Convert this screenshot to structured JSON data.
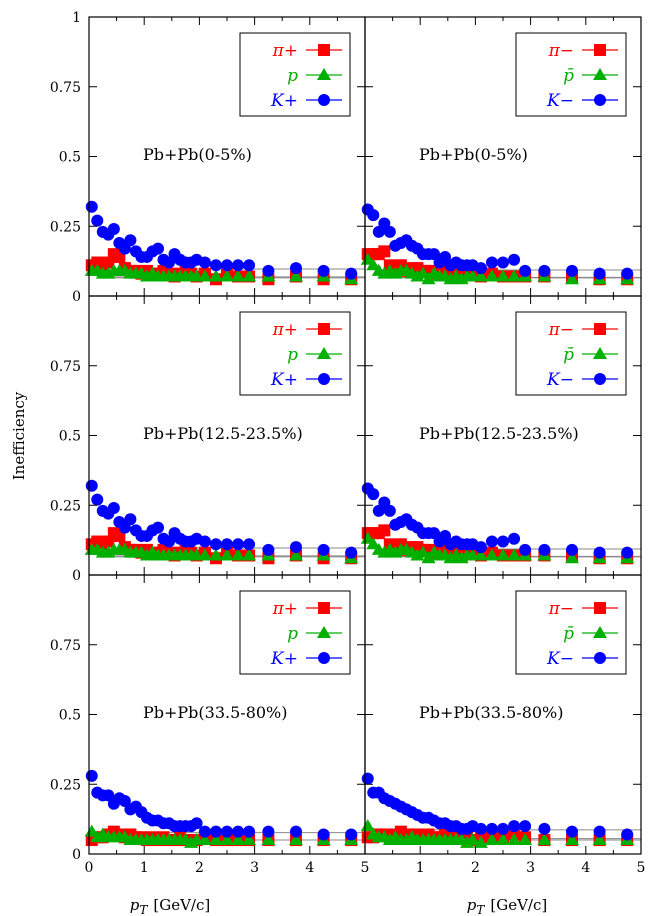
{
  "figure": {
    "ylabel": "Inefficiency",
    "xlabel_main": "p",
    "xlabel_sub": "T",
    "xlabel_unit": "[GeV/c]",
    "ytick_labels": [
      "0",
      "0.25",
      "0.5",
      "0.75",
      "1"
    ],
    "xtick_labels": [
      "0",
      "1",
      "2",
      "3",
      "4",
      "5"
    ],
    "colors": {
      "pion": "#ff0000",
      "proton": "#00b000",
      "kaon": "#0000ff",
      "fitline": "#888888"
    }
  },
  "chart_data": [
    {
      "type": "scatter",
      "panel": "row1-left",
      "annotation": "Pb+Pb(0-5%)",
      "xlim": [
        0,
        5
      ],
      "ylim": [
        0,
        1
      ],
      "legend": [
        "π+",
        "p",
        "K+"
      ],
      "x": [
        0.05,
        0.15,
        0.25,
        0.35,
        0.45,
        0.55,
        0.65,
        0.75,
        0.85,
        0.95,
        1.05,
        1.15,
        1.25,
        1.35,
        1.45,
        1.55,
        1.65,
        1.75,
        1.85,
        1.95,
        2.1,
        2.3,
        2.5,
        2.7,
        2.9,
        3.25,
        3.75,
        4.25,
        4.75
      ],
      "series": [
        {
          "name": "π+",
          "marker": "square",
          "values": [
            0.11,
            0.12,
            0.11,
            0.12,
            0.15,
            0.14,
            0.1,
            0.09,
            0.09,
            0.08,
            0.09,
            0.08,
            0.08,
            0.09,
            0.08,
            0.07,
            0.08,
            0.09,
            0.08,
            0.07,
            0.08,
            0.06,
            0.08,
            0.07,
            0.07,
            0.06,
            0.07,
            0.06,
            0.06
          ]
        },
        {
          "name": "p",
          "marker": "triangle",
          "values": [
            0.09,
            0.09,
            0.08,
            0.08,
            0.09,
            0.09,
            0.09,
            0.08,
            0.08,
            0.08,
            0.07,
            0.08,
            0.07,
            0.07,
            0.07,
            0.07,
            0.07,
            0.07,
            0.07,
            0.07,
            0.07,
            0.07,
            0.07,
            0.07,
            0.07,
            0.07,
            0.07,
            0.07,
            0.06
          ]
        },
        {
          "name": "K+",
          "marker": "circle",
          "values": [
            0.32,
            0.27,
            0.23,
            0.22,
            0.24,
            0.19,
            0.17,
            0.2,
            0.16,
            0.14,
            0.14,
            0.16,
            0.17,
            0.13,
            0.12,
            0.15,
            0.13,
            0.12,
            0.12,
            0.13,
            0.12,
            0.11,
            0.11,
            0.11,
            0.11,
            0.09,
            0.1,
            0.09,
            0.08
          ]
        }
      ]
    },
    {
      "type": "scatter",
      "panel": "row1-right",
      "annotation": "Pb+Pb(0-5%)",
      "xlim": [
        0,
        5
      ],
      "ylim": [
        0,
        1
      ],
      "legend": [
        "π−",
        "p̄",
        "K−"
      ],
      "x": [
        0.05,
        0.15,
        0.25,
        0.35,
        0.45,
        0.55,
        0.65,
        0.75,
        0.85,
        0.95,
        1.05,
        1.15,
        1.25,
        1.35,
        1.45,
        1.55,
        1.65,
        1.75,
        1.85,
        1.95,
        2.1,
        2.3,
        2.5,
        2.7,
        2.9,
        3.25,
        3.75,
        4.25,
        4.75
      ],
      "series": [
        {
          "name": "π−",
          "marker": "square",
          "values": [
            0.15,
            0.15,
            0.15,
            0.16,
            0.11,
            0.1,
            0.11,
            0.09,
            0.1,
            0.1,
            0.09,
            0.09,
            0.08,
            0.09,
            0.08,
            0.08,
            0.08,
            0.07,
            0.08,
            0.08,
            0.07,
            0.08,
            0.07,
            0.07,
            0.07,
            0.07,
            0.07,
            0.06,
            0.06
          ]
        },
        {
          "name": "p̄",
          "marker": "triangle",
          "values": [
            0.13,
            0.11,
            0.09,
            0.08,
            0.09,
            0.08,
            0.09,
            0.09,
            0.08,
            0.07,
            0.08,
            0.06,
            0.08,
            0.07,
            0.07,
            0.06,
            0.07,
            0.06,
            0.07,
            0.07,
            0.07,
            0.07,
            0.07,
            0.07,
            0.07,
            0.07,
            0.06,
            0.06,
            0.06
          ]
        },
        {
          "name": "K−",
          "marker": "circle",
          "values": [
            0.31,
            0.29,
            0.23,
            0.26,
            0.23,
            0.18,
            0.19,
            0.2,
            0.18,
            0.17,
            0.15,
            0.15,
            0.15,
            0.12,
            0.14,
            0.11,
            0.12,
            0.11,
            0.11,
            0.11,
            0.1,
            0.12,
            0.12,
            0.13,
            0.09,
            0.09,
            0.09,
            0.08,
            0.08
          ]
        }
      ]
    },
    {
      "type": "scatter",
      "panel": "row2-left",
      "annotation": "Pb+Pb(12.5-23.5%)",
      "xlim": [
        0,
        5
      ],
      "ylim": [
        0,
        1
      ],
      "legend": [
        "π+",
        "p",
        "K+"
      ],
      "x": [
        0.05,
        0.15,
        0.25,
        0.35,
        0.45,
        0.55,
        0.65,
        0.75,
        0.85,
        0.95,
        1.05,
        1.15,
        1.25,
        1.35,
        1.45,
        1.55,
        1.65,
        1.75,
        1.85,
        1.95,
        2.1,
        2.3,
        2.5,
        2.7,
        2.9,
        3.25,
        3.75,
        4.25,
        4.75
      ],
      "series": [
        {
          "name": "π+",
          "marker": "square",
          "values": [
            0.11,
            0.12,
            0.11,
            0.12,
            0.15,
            0.14,
            0.1,
            0.09,
            0.09,
            0.08,
            0.09,
            0.08,
            0.08,
            0.09,
            0.08,
            0.07,
            0.08,
            0.09,
            0.08,
            0.07,
            0.08,
            0.06,
            0.08,
            0.07,
            0.07,
            0.06,
            0.07,
            0.06,
            0.06
          ]
        },
        {
          "name": "p",
          "marker": "triangle",
          "values": [
            0.09,
            0.09,
            0.08,
            0.08,
            0.09,
            0.09,
            0.09,
            0.08,
            0.08,
            0.08,
            0.07,
            0.08,
            0.07,
            0.07,
            0.07,
            0.07,
            0.07,
            0.07,
            0.07,
            0.07,
            0.07,
            0.07,
            0.07,
            0.07,
            0.07,
            0.07,
            0.07,
            0.07,
            0.06
          ]
        },
        {
          "name": "K+",
          "marker": "circle",
          "values": [
            0.32,
            0.27,
            0.23,
            0.22,
            0.24,
            0.19,
            0.17,
            0.2,
            0.16,
            0.14,
            0.14,
            0.16,
            0.17,
            0.13,
            0.12,
            0.15,
            0.13,
            0.12,
            0.12,
            0.13,
            0.12,
            0.11,
            0.11,
            0.11,
            0.11,
            0.09,
            0.1,
            0.09,
            0.08
          ]
        }
      ]
    },
    {
      "type": "scatter",
      "panel": "row2-right",
      "annotation": "Pb+Pb(12.5-23.5%)",
      "xlim": [
        0,
        5
      ],
      "ylim": [
        0,
        1
      ],
      "legend": [
        "π−",
        "p̄",
        "K−"
      ],
      "x": [
        0.05,
        0.15,
        0.25,
        0.35,
        0.45,
        0.55,
        0.65,
        0.75,
        0.85,
        0.95,
        1.05,
        1.15,
        1.25,
        1.35,
        1.45,
        1.55,
        1.65,
        1.75,
        1.85,
        1.95,
        2.1,
        2.3,
        2.5,
        2.7,
        2.9,
        3.25,
        3.75,
        4.25,
        4.75
      ],
      "series": [
        {
          "name": "π−",
          "marker": "square",
          "values": [
            0.15,
            0.15,
            0.15,
            0.16,
            0.11,
            0.1,
            0.11,
            0.09,
            0.1,
            0.1,
            0.09,
            0.09,
            0.08,
            0.09,
            0.08,
            0.08,
            0.08,
            0.07,
            0.08,
            0.08,
            0.07,
            0.08,
            0.07,
            0.07,
            0.07,
            0.07,
            0.07,
            0.06,
            0.06
          ]
        },
        {
          "name": "p̄",
          "marker": "triangle",
          "values": [
            0.13,
            0.11,
            0.09,
            0.08,
            0.09,
            0.08,
            0.09,
            0.09,
            0.08,
            0.07,
            0.08,
            0.06,
            0.08,
            0.07,
            0.07,
            0.06,
            0.07,
            0.06,
            0.07,
            0.07,
            0.07,
            0.07,
            0.07,
            0.07,
            0.07,
            0.07,
            0.06,
            0.06,
            0.06
          ]
        },
        {
          "name": "K−",
          "marker": "circle",
          "values": [
            0.31,
            0.29,
            0.23,
            0.26,
            0.23,
            0.18,
            0.19,
            0.2,
            0.18,
            0.17,
            0.15,
            0.15,
            0.15,
            0.12,
            0.14,
            0.11,
            0.12,
            0.11,
            0.11,
            0.11,
            0.1,
            0.12,
            0.12,
            0.13,
            0.09,
            0.09,
            0.09,
            0.08,
            0.08
          ]
        }
      ]
    },
    {
      "type": "scatter",
      "panel": "row3-left",
      "annotation": "Pb+Pb(33.5-80%)",
      "xlim": [
        0,
        5
      ],
      "ylim": [
        0,
        1
      ],
      "legend": [
        "π+",
        "p",
        "K+"
      ],
      "x": [
        0.05,
        0.15,
        0.25,
        0.35,
        0.45,
        0.55,
        0.65,
        0.75,
        0.85,
        0.95,
        1.05,
        1.15,
        1.25,
        1.35,
        1.45,
        1.55,
        1.65,
        1.75,
        1.85,
        1.95,
        2.1,
        2.3,
        2.5,
        2.7,
        2.9,
        3.25,
        3.75,
        4.25,
        4.75
      ],
      "series": [
        {
          "name": "π+",
          "marker": "square",
          "values": [
            0.05,
            0.06,
            0.06,
            0.07,
            0.08,
            0.07,
            0.06,
            0.07,
            0.06,
            0.06,
            0.05,
            0.06,
            0.05,
            0.06,
            0.05,
            0.05,
            0.06,
            0.05,
            0.05,
            0.05,
            0.06,
            0.05,
            0.05,
            0.05,
            0.05,
            0.05,
            0.05,
            0.05,
            0.05
          ]
        },
        {
          "name": "p",
          "marker": "triangle",
          "values": [
            0.08,
            0.06,
            0.07,
            0.06,
            0.06,
            0.06,
            0.06,
            0.05,
            0.05,
            0.05,
            0.05,
            0.05,
            0.05,
            0.05,
            0.05,
            0.05,
            0.05,
            0.05,
            0.04,
            0.05,
            0.05,
            0.05,
            0.05,
            0.05,
            0.05,
            0.05,
            0.05,
            0.05,
            0.05
          ]
        },
        {
          "name": "K+",
          "marker": "circle",
          "values": [
            0.28,
            0.22,
            0.21,
            0.21,
            0.18,
            0.2,
            0.19,
            0.16,
            0.17,
            0.15,
            0.13,
            0.12,
            0.12,
            0.11,
            0.11,
            0.1,
            0.1,
            0.1,
            0.1,
            0.11,
            0.08,
            0.08,
            0.08,
            0.08,
            0.08,
            0.08,
            0.08,
            0.07,
            0.07
          ]
        }
      ]
    },
    {
      "type": "scatter",
      "panel": "row3-right",
      "annotation": "Pb+Pb(33.5-80%)",
      "xlim": [
        0,
        5
      ],
      "ylim": [
        0,
        1
      ],
      "legend": [
        "π−",
        "p̄",
        "K−"
      ],
      "x": [
        0.05,
        0.15,
        0.25,
        0.35,
        0.45,
        0.55,
        0.65,
        0.75,
        0.85,
        0.95,
        1.05,
        1.15,
        1.25,
        1.35,
        1.45,
        1.55,
        1.65,
        1.75,
        1.85,
        1.95,
        2.1,
        2.3,
        2.5,
        2.7,
        2.9,
        3.25,
        3.75,
        4.25,
        4.75
      ],
      "series": [
        {
          "name": "π−",
          "marker": "square",
          "values": [
            0.06,
            0.06,
            0.07,
            0.07,
            0.06,
            0.07,
            0.08,
            0.07,
            0.07,
            0.07,
            0.06,
            0.07,
            0.06,
            0.06,
            0.07,
            0.06,
            0.06,
            0.06,
            0.06,
            0.05,
            0.06,
            0.06,
            0.06,
            0.07,
            0.06,
            0.05,
            0.05,
            0.05,
            0.05
          ]
        },
        {
          "name": "p̄",
          "marker": "triangle",
          "values": [
            0.1,
            0.07,
            0.06,
            0.06,
            0.05,
            0.06,
            0.05,
            0.05,
            0.06,
            0.05,
            0.05,
            0.05,
            0.05,
            0.05,
            0.05,
            0.05,
            0.05,
            0.05,
            0.04,
            0.05,
            0.04,
            0.05,
            0.05,
            0.05,
            0.05,
            0.05,
            0.05,
            0.05,
            0.05
          ]
        },
        {
          "name": "K−",
          "marker": "circle",
          "values": [
            0.27,
            0.22,
            0.22,
            0.2,
            0.19,
            0.18,
            0.17,
            0.16,
            0.15,
            0.14,
            0.13,
            0.13,
            0.12,
            0.11,
            0.11,
            0.1,
            0.1,
            0.09,
            0.09,
            0.1,
            0.09,
            0.09,
            0.09,
            0.1,
            0.1,
            0.09,
            0.08,
            0.08,
            0.07
          ]
        }
      ]
    }
  ]
}
